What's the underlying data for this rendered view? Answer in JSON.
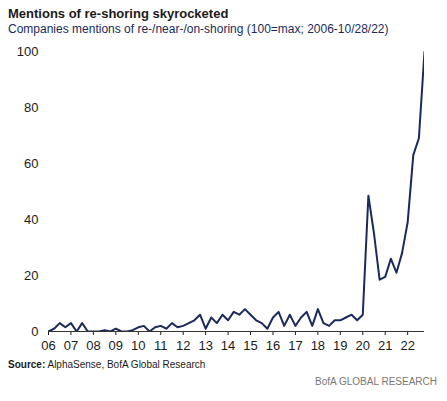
{
  "chart_data": {
    "type": "line",
    "title": "Mentions of re-shoring skyrocketed",
    "subtitle": "Companies mentions of re-/near-/on-shoring (100=max; 2006-10/28/22)",
    "source": "Source: AlphaSense, BofA Global Research",
    "credit": "BofA GLOBAL RESEARCH",
    "x": [
      2006,
      2006.25,
      2006.5,
      2006.75,
      2007,
      2007.25,
      2007.5,
      2007.75,
      2008,
      2008.25,
      2008.5,
      2008.75,
      2009,
      2009.25,
      2009.5,
      2009.75,
      2010,
      2010.25,
      2010.5,
      2010.75,
      2011,
      2011.25,
      2011.5,
      2011.75,
      2012,
      2012.25,
      2012.5,
      2012.75,
      2013,
      2013.25,
      2013.5,
      2013.75,
      2014,
      2014.25,
      2014.5,
      2014.75,
      2015,
      2015.25,
      2015.5,
      2015.75,
      2016,
      2016.25,
      2016.5,
      2016.75,
      2017,
      2017.25,
      2017.5,
      2017.75,
      2018,
      2018.25,
      2018.5,
      2018.75,
      2019,
      2019.25,
      2019.5,
      2019.75,
      2020,
      2020.25,
      2020.5,
      2020.75,
      2021,
      2021.25,
      2021.5,
      2021.75,
      2022,
      2022.25,
      2022.5,
      2022.75
    ],
    "values": [
      0,
      1,
      3,
      1.5,
      3,
      0,
      3,
      0,
      0,
      0,
      0.5,
      0,
      1,
      0,
      0,
      0.5,
      1.5,
      2,
      0,
      1.5,
      2,
      1,
      3,
      1.5,
      2,
      3,
      4,
      6,
      1,
      5,
      3,
      6,
      4,
      7,
      6,
      8,
      6,
      4,
      3,
      1,
      5,
      7,
      2,
      6,
      2,
      5,
      7,
      2,
      8,
      3,
      2,
      4,
      4,
      5,
      6,
      4,
      6,
      48.5,
      35,
      18.5,
      19.5,
      26,
      21,
      28,
      39,
      63,
      69,
      100
    ],
    "color": "#1b2a5c",
    "xlim": [
      2006,
      2022.75
    ],
    "xticks": [
      {
        "value": 2006,
        "label": "06"
      },
      {
        "value": 2007,
        "label": "07"
      },
      {
        "value": 2008,
        "label": "08"
      },
      {
        "value": 2009,
        "label": "09"
      },
      {
        "value": 2010,
        "label": "10"
      },
      {
        "value": 2011,
        "label": "11"
      },
      {
        "value": 2012,
        "label": "12"
      },
      {
        "value": 2013,
        "label": "13"
      },
      {
        "value": 2014,
        "label": "14"
      },
      {
        "value": 2015,
        "label": "15"
      },
      {
        "value": 2016,
        "label": "16"
      },
      {
        "value": 2017,
        "label": "17"
      },
      {
        "value": 2018,
        "label": "18"
      },
      {
        "value": 2019,
        "label": "19"
      },
      {
        "value": 2020,
        "label": "20"
      },
      {
        "value": 2021,
        "label": "21"
      },
      {
        "value": 2022,
        "label": "22"
      }
    ],
    "ylim": [
      0,
      100
    ],
    "yticks": [
      0,
      20,
      40,
      60,
      80,
      100
    ],
    "grid": false
  }
}
